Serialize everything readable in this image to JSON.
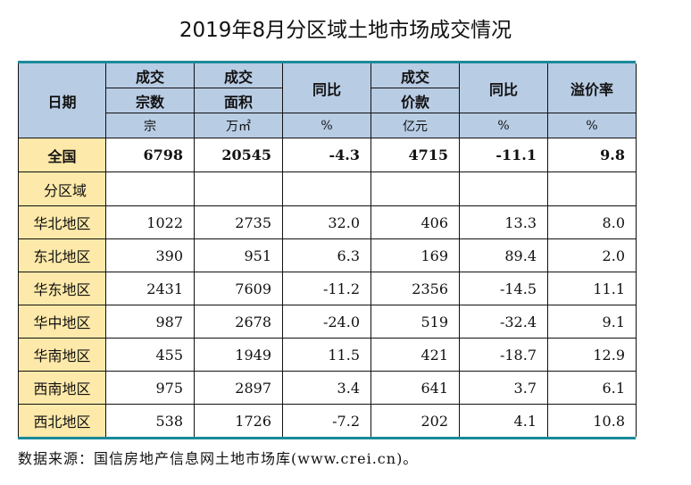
{
  "title": "2019年8月分区域土地市场成交情况",
  "header": {
    "date_label": "日期",
    "deals_line1": "成交",
    "deals_line2": "宗数",
    "deals_unit": "宗",
    "area_line1": "成交",
    "area_line2": "面积",
    "area_unit": "万㎡",
    "yoy1_label": "同比",
    "yoy1_unit": "%",
    "price_line1": "成交",
    "price_line2": "价款",
    "price_unit": "亿元",
    "yoy2_label": "同比",
    "yoy2_unit": "%",
    "premium_label": "溢价率",
    "premium_unit": "%"
  },
  "national": {
    "label": "全国",
    "deals": "6798",
    "area": "20545",
    "area_yoy": "-4.3",
    "price": "4715",
    "price_yoy": "-11.1",
    "premium": "9.8"
  },
  "section_label": "分区域",
  "regions": [
    {
      "label": "华北地区",
      "deals": "1022",
      "area": "2735",
      "area_yoy": "32.0",
      "price": "406",
      "price_yoy": "13.3",
      "premium": "8.0"
    },
    {
      "label": "东北地区",
      "deals": "390",
      "area": "951",
      "area_yoy": "6.3",
      "price": "169",
      "price_yoy": "89.4",
      "premium": "2.0"
    },
    {
      "label": "华东地区",
      "deals": "2431",
      "area": "7609",
      "area_yoy": "-11.2",
      "price": "2356",
      "price_yoy": "-14.5",
      "premium": "11.1"
    },
    {
      "label": "华中地区",
      "deals": "987",
      "area": "2678",
      "area_yoy": "-24.0",
      "price": "519",
      "price_yoy": "-32.4",
      "premium": "9.1"
    },
    {
      "label": "华南地区",
      "deals": "455",
      "area": "1949",
      "area_yoy": "11.5",
      "price": "421",
      "price_yoy": "-18.7",
      "premium": "12.9"
    },
    {
      "label": "西南地区",
      "deals": "975",
      "area": "2897",
      "area_yoy": "3.4",
      "price": "641",
      "price_yoy": "3.7",
      "premium": "6.1"
    },
    {
      "label": "西北地区",
      "deals": "538",
      "area": "1726",
      "area_yoy": "-7.2",
      "price": "202",
      "price_yoy": "4.1",
      "premium": "10.8"
    }
  ],
  "source": "数据来源：国信房地产信息网土地市场库(www.crei.cn)。",
  "colors": {
    "header_bg": "#b8cce4",
    "label_bg": "#fde9a9",
    "rule": "#1a8a9a"
  }
}
